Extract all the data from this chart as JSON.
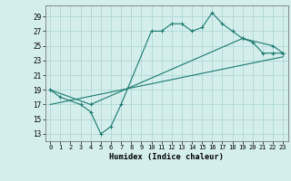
{
  "line1_x": [
    0,
    1,
    3,
    4,
    5,
    6,
    7,
    10,
    11,
    12,
    13,
    14,
    15,
    16,
    17,
    18,
    19,
    20,
    21,
    22,
    23
  ],
  "line1_y": [
    19,
    18,
    17,
    16,
    13,
    14,
    17,
    27,
    27,
    28,
    28,
    27,
    27.5,
    29.5,
    28,
    27,
    26,
    25.5,
    24,
    24,
    24
  ],
  "line2_x": [
    0,
    4,
    19,
    22,
    23
  ],
  "line2_y": [
    19,
    17,
    26,
    25,
    24
  ],
  "line3_x": [
    0,
    23
  ],
  "line3_y": [
    17,
    23.5
  ],
  "line_color": "#1a7a6e",
  "bg_color": "#d4eeec",
  "grid_color": "#aed8d5",
  "xlabel": "Humidex (Indice chaleur)",
  "yticks": [
    13,
    15,
    17,
    19,
    21,
    23,
    25,
    27,
    29
  ],
  "xticks": [
    0,
    1,
    2,
    3,
    4,
    5,
    6,
    7,
    8,
    9,
    10,
    11,
    12,
    13,
    14,
    15,
    16,
    17,
    18,
    19,
    20,
    21,
    22,
    23
  ],
  "xlim": [
    -0.5,
    23.5
  ],
  "ylim": [
    12,
    30.5
  ]
}
